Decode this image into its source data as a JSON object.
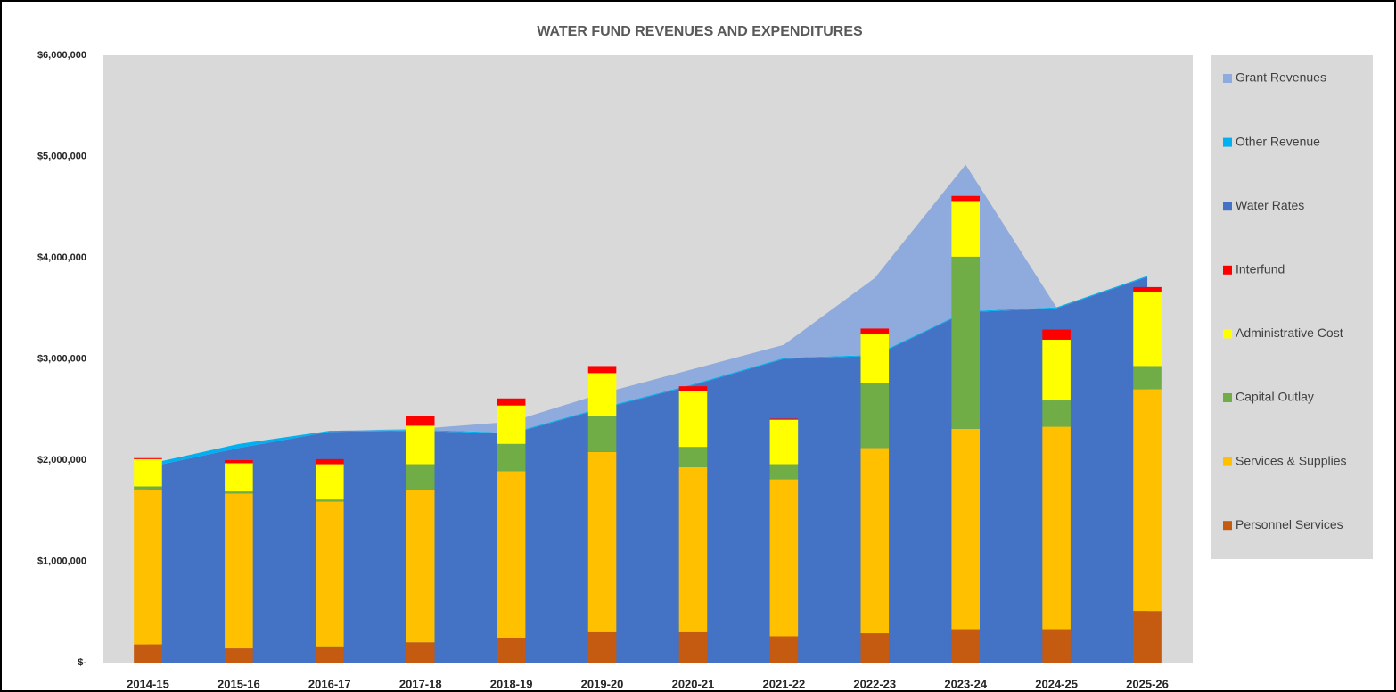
{
  "chart_data": {
    "type": "bar",
    "title": "WATER FUND REVENUES AND EXPENDITURES",
    "categories": [
      "2014-15",
      "2015-16",
      "2016-17",
      "2017-18",
      "2018-19",
      "2019-20",
      "2020-21",
      "2021-22",
      "2022-23",
      "2023-24",
      "2024-25",
      "2025-26"
    ],
    "ylim": [
      0,
      6000000
    ],
    "yticks": [
      {
        "value": 0,
        "label": "$-"
      },
      {
        "value": 1000000,
        "label": "$1,000,000"
      },
      {
        "value": 2000000,
        "label": "$2,000,000"
      },
      {
        "value": 3000000,
        "label": "$3,000,000"
      },
      {
        "value": 4000000,
        "label": "$4,000,000"
      },
      {
        "value": 5000000,
        "label": "$5,000,000"
      },
      {
        "value": 6000000,
        "label": "$6,000,000"
      }
    ],
    "legend": "right",
    "series": [
      {
        "name": "Grant Revenues",
        "type": "area",
        "color": "#8faadc",
        "values": [
          0,
          0,
          0,
          10000,
          110000,
          140000,
          150000,
          130000,
          760000,
          1450000,
          0,
          0
        ]
      },
      {
        "name": "Other Revenue",
        "type": "area",
        "color": "#00b0f0",
        "values": [
          30000,
          40000,
          10000,
          10000,
          10000,
          10000,
          10000,
          10000,
          10000,
          10000,
          10000,
          10000
        ]
      },
      {
        "name": "Water Rates",
        "type": "area",
        "color": "#4472c4",
        "values": [
          1930000,
          2120000,
          2280000,
          2290000,
          2260000,
          2510000,
          2740000,
          3000000,
          3030000,
          3460000,
          3500000,
          3810000
        ]
      },
      {
        "name": "Interfund",
        "type": "bar",
        "color": "#ff0000",
        "values": [
          10000,
          30000,
          50000,
          100000,
          70000,
          70000,
          50000,
          10000,
          50000,
          50000,
          100000,
          50000
        ]
      },
      {
        "name": "Administrative Cost",
        "type": "bar",
        "color": "#ffff00",
        "values": [
          270000,
          280000,
          350000,
          380000,
          380000,
          420000,
          550000,
          440000,
          490000,
          550000,
          600000,
          730000
        ]
      },
      {
        "name": "Capital Outlay",
        "type": "bar",
        "color": "#70ad47",
        "values": [
          30000,
          20000,
          20000,
          250000,
          270000,
          360000,
          200000,
          150000,
          640000,
          1700000,
          260000,
          230000
        ]
      },
      {
        "name": "Services & Supplies",
        "type": "bar",
        "color": "#ffc000",
        "values": [
          1530000,
          1530000,
          1430000,
          1510000,
          1650000,
          1780000,
          1630000,
          1550000,
          1830000,
          1980000,
          2000000,
          2190000
        ]
      },
      {
        "name": "Personnel Services",
        "type": "bar",
        "color": "#c55a11",
        "values": [
          180000,
          140000,
          160000,
          200000,
          240000,
          300000,
          300000,
          260000,
          290000,
          330000,
          330000,
          510000
        ]
      }
    ]
  }
}
